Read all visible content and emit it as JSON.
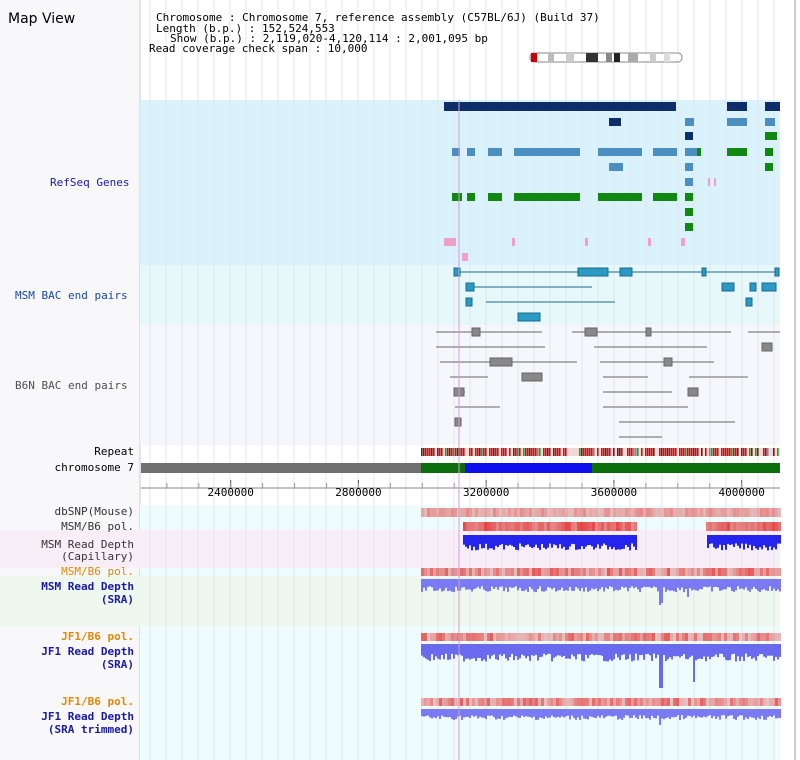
{
  "title": "Map View",
  "header": {
    "chromosome_label": "Chromosome     : Chromosome 7, reference assembly (C57BL/6J) (Build 37)",
    "length_label": "Length (b.p.) : 152,524,553",
    "show_label": "Show (b.p.) : 2,119,020-4,120,114 : 2,001,095 bp",
    "coverage_label": "Read coverage check span : 10,000"
  },
  "tracks": {
    "refseq": "RefSeq Genes",
    "msm_bac": "MSM BAC end pairs",
    "b6n_bac": "B6N BAC end pairs",
    "repeat": "Repeat",
    "chromosome": "chromosome 7",
    "dbsnp": "dbSNP(Mouse)",
    "msm_b6_pol": "MSM/B6 pol.",
    "msm_depth_cap_1": "MSM Read Depth",
    "msm_depth_cap_2": "(Capillary)",
    "msm_b6_pol_2": "MSM/B6 pol.",
    "msm_depth_sra_1": "MSM Read Depth",
    "msm_depth_sra_2": "(SRA)",
    "jf1_b6_pol": "JF1/B6 pol.",
    "jf1_depth_sra_1": "JF1 Read Depth",
    "jf1_depth_sra_2": "(SRA)",
    "jf1_b6_pol_2": "JF1/B6 pol.",
    "jf1_depth_trim_1": "JF1 Read Depth",
    "jf1_depth_trim_2": "(SRA trimmed)"
  },
  "axis": {
    "ticks": [
      "2400000",
      "2800000",
      "3200000",
      "3600000",
      "4000000"
    ],
    "tick_values": [
      2400000,
      2800000,
      3200000,
      3600000,
      4000000
    ]
  },
  "colors": {
    "refseq_bg": "#d9f2fb",
    "bac_bg": "#e3f9fb",
    "b6n_bg": "#f6f7fb",
    "chrom_gray": "#707070",
    "chrom_green": "#0b6e0b",
    "chrom_blue": "#1010ee",
    "depth_blue": "#3a3af0",
    "pol_red": "#e03030"
  }
}
